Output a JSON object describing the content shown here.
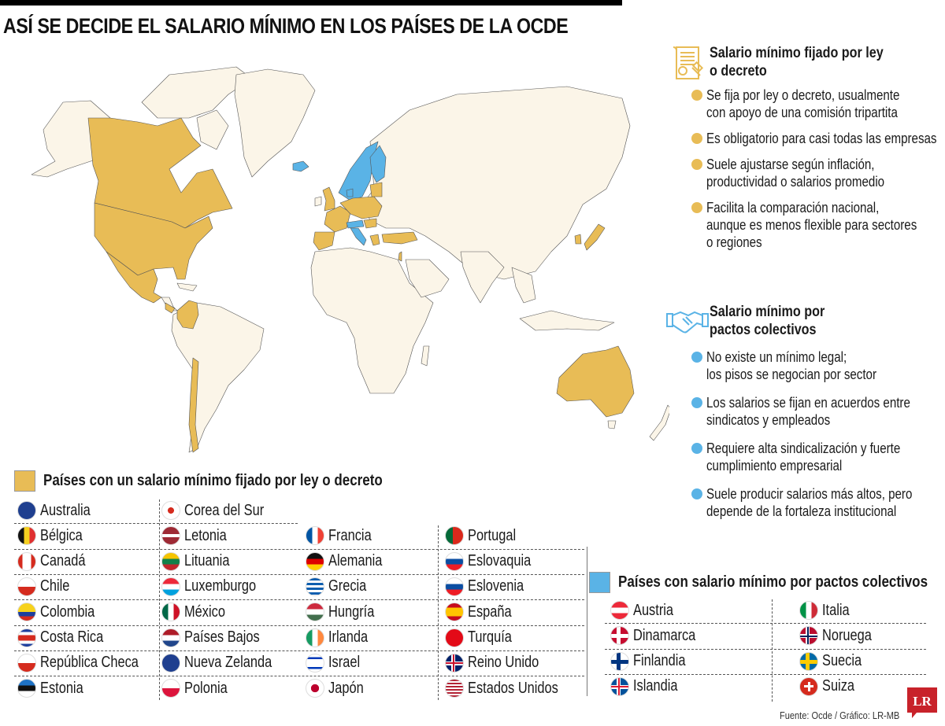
{
  "header": {
    "title": "ASÍ SE DECIDE EL SALARIO MÍNIMO EN LOS PAÍSES DE LA OCDE"
  },
  "colors": {
    "law_decree": "#E8BC56",
    "collective": "#5AB3E6",
    "other_land": "#FBF5E8",
    "border": "#555555",
    "logo_red": "#C8222A"
  },
  "map": {
    "legend_law_countries_highlighted": [
      "Canadá",
      "Estados Unidos",
      "México",
      "Costa Rica",
      "Colombia",
      "Chile",
      "Reino Unido",
      "Irlanda",
      "Francia",
      "España",
      "Portugal",
      "Bélgica",
      "Países Bajos",
      "Alemania",
      "Polonia",
      "República Checa",
      "Eslovaquia",
      "Hungría",
      "Eslovenia",
      "Letonia",
      "Lituania",
      "Estonia",
      "Grecia",
      "Turquía",
      "Israel",
      "Corea del Sur",
      "Japón",
      "Australia"
    ],
    "legend_collective_countries_highlighted": [
      "Islandia",
      "Noruega",
      "Suecia",
      "Finlandia",
      "Dinamarca",
      "Austria",
      "Suiza",
      "Italia"
    ]
  },
  "info": {
    "law": {
      "icon": "decree-scroll-gavel-icon",
      "title_line1": "Salario mínimo fijado por ley",
      "title_line2": "o decreto",
      "bullets": [
        "Se fija por ley o decreto, usualmente\ncon apoyo de una comisión tripartita",
        "Es obligatorio para casi todas las empresas",
        "Suele ajustarse según inflación,\nproductividad o salarios promedio",
        "Facilita la comparación nacional,\naunque es menos flexible para sectores\no regiones"
      ]
    },
    "collective": {
      "icon": "handshake-icon",
      "title_line1": "Salario mínimo por",
      "title_line2": "pactos colectivos",
      "bullets": [
        "No existe un mínimo legal;\nlos pisos se negocian por sector",
        "Los salarios se fijan en acuerdos entre\nsindicatos y empleados",
        "Requiere alta sindicalización y fuerte\ncumplimiento empresarial",
        "Suele producir salarios más altos, pero\ndepende de la fortaleza institucional"
      ]
    }
  },
  "legend_law": {
    "title": "Países con un salario mínimo fijado por ley o decreto",
    "columns": [
      [
        "Australia",
        "Bélgica",
        "Canadá",
        "Chile",
        "Colombia",
        "Costa Rica",
        "República Checa",
        "Estonia"
      ],
      [
        "Corea del Sur",
        "Letonia",
        "Lituania",
        "Luxemburgo",
        "México",
        "Países Bajos",
        "Nueva Zelanda",
        "Polonia"
      ],
      [
        "Francia",
        "Alemania",
        "Grecia",
        "Hungría",
        "Irlanda",
        "Israel",
        "Japón"
      ],
      [
        "Portugal",
        "Eslovaquia",
        "Eslovenia",
        "España",
        "Turquía",
        "Reino Unido",
        "Estados Unidos"
      ]
    ]
  },
  "legend_collective": {
    "title": "Países con salario mínimo por pactos colectivos",
    "columns": [
      [
        "Austria",
        "Dinamarca",
        "Finlandia",
        "Islandia"
      ],
      [
        "Italia",
        "Noruega",
        "Suecia",
        "Suiza"
      ]
    ]
  },
  "footer": {
    "source": "Fuente: Ocde / Gráfico: LR-MB",
    "logo": "LR"
  }
}
